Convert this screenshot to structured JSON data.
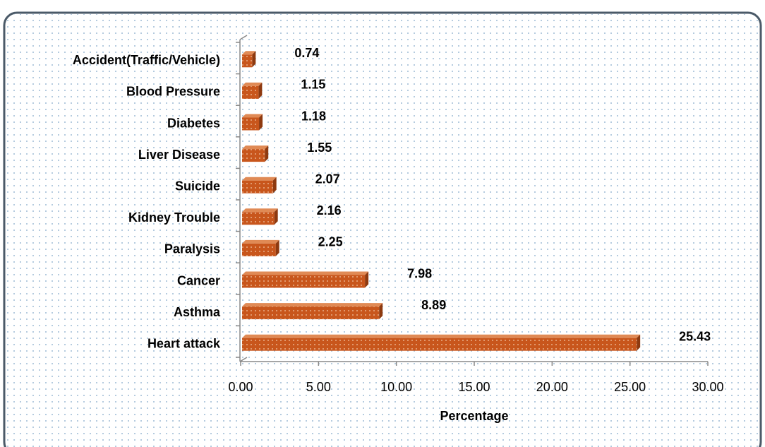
{
  "chart_data": {
    "type": "barh",
    "xlabel": "Percentage",
    "categories": [
      "Accident(Traffic/Vehicle)",
      "Blood Pressure",
      "Diabetes",
      "Liver Disease",
      "Suicide",
      "Kidney Trouble",
      "Paralysis",
      "Cancer",
      "Asthma",
      "Heart attack"
    ],
    "values": [
      0.74,
      1.15,
      1.18,
      1.55,
      2.07,
      2.16,
      2.25,
      7.98,
      8.89,
      25.43
    ],
    "color": "#c8561c",
    "xlim": [
      0,
      30
    ],
    "xticks": [
      {
        "value": 0,
        "label": "0.00"
      },
      {
        "value": 5,
        "label": "5.00"
      },
      {
        "value": 10,
        "label": "10.00"
      },
      {
        "value": 15,
        "label": "15.00"
      },
      {
        "value": 20,
        "label": "20.00"
      },
      {
        "value": 25,
        "label": "25.00"
      },
      {
        "value": 30,
        "label": "30.00"
      }
    ]
  }
}
